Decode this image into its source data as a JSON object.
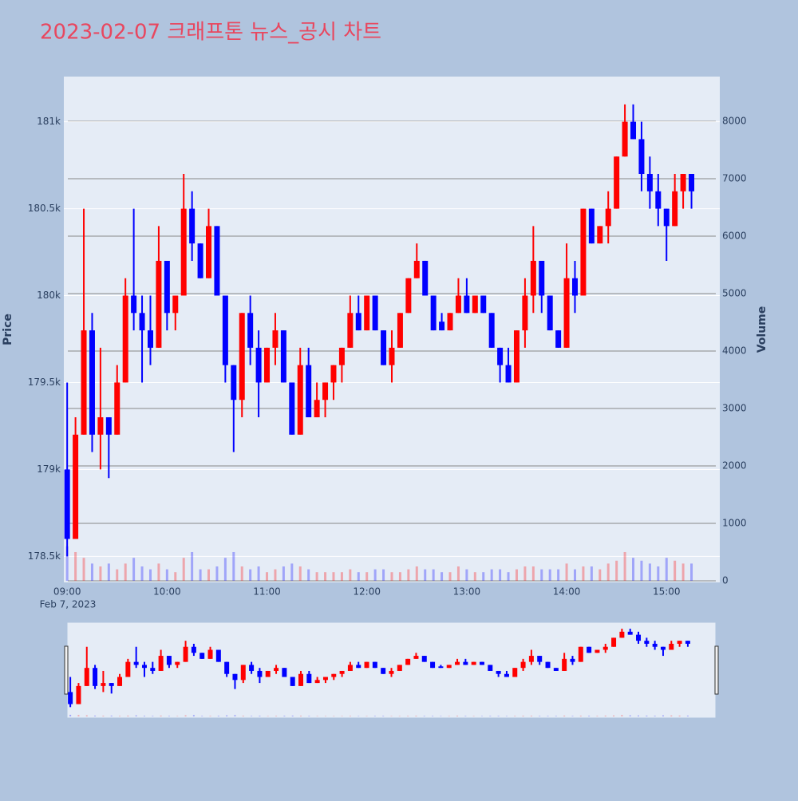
{
  "chart_data": {
    "type": "candlestick",
    "title": "2023-02-07 크래프톤 뉴스_공시 차트",
    "y_title": "Price",
    "y2_title": "Volume",
    "x_date_label": "Feb 7, 2023",
    "increasing_color": "#ff0000",
    "decreasing_color": "#0000ff",
    "grid": true,
    "x": [
      "09:00",
      "09:05",
      "09:10",
      "09:15",
      "09:20",
      "09:25",
      "09:30",
      "09:35",
      "09:40",
      "09:45",
      "09:50",
      "09:55",
      "10:00",
      "10:05",
      "10:10",
      "10:15",
      "10:20",
      "10:25",
      "10:30",
      "10:35",
      "10:40",
      "10:45",
      "10:50",
      "10:55",
      "11:00",
      "11:05",
      "11:10",
      "11:15",
      "11:20",
      "11:25",
      "11:30",
      "11:35",
      "11:40",
      "11:45",
      "11:50",
      "11:55",
      "12:00",
      "12:05",
      "12:10",
      "12:15",
      "12:20",
      "12:25",
      "12:30",
      "12:35",
      "12:40",
      "12:45",
      "12:50",
      "12:55",
      "13:00",
      "13:05",
      "13:10",
      "13:15",
      "13:20",
      "13:25",
      "13:30",
      "13:35",
      "13:40",
      "13:45",
      "13:50",
      "13:55",
      "14:00",
      "14:05",
      "14:10",
      "14:15",
      "14:20",
      "14:25",
      "14:30",
      "14:35",
      "14:40",
      "14:45",
      "14:50",
      "14:55",
      "15:00",
      "15:05",
      "15:10",
      "15:15"
    ],
    "open": [
      179000,
      178600,
      179200,
      179800,
      179200,
      179300,
      179200,
      179500,
      180000,
      179900,
      179800,
      179700,
      180200,
      179900,
      180000,
      180500,
      180300,
      180100,
      180400,
      180000,
      179600,
      179400,
      179900,
      179700,
      179500,
      179700,
      179800,
      179500,
      179200,
      179600,
      179300,
      179400,
      179500,
      179600,
      179700,
      179900,
      179800,
      180000,
      179800,
      179600,
      179700,
      179900,
      180100,
      180200,
      180000,
      179850,
      179800,
      179900,
      180000,
      179900,
      180000,
      179900,
      179700,
      179600,
      179500,
      179800,
      180000,
      180200,
      180000,
      179800,
      179700,
      180100,
      180000,
      180500,
      180300,
      180400,
      180500,
      180800,
      181000,
      180900,
      180700,
      180600,
      180500,
      180400,
      180600,
      180700
    ],
    "high": [
      179500,
      179300,
      180500,
      179900,
      179700,
      179300,
      179600,
      180100,
      180500,
      180000,
      180000,
      180400,
      180200,
      180000,
      180700,
      180600,
      180300,
      180500,
      180400,
      180000,
      179600,
      179900,
      180000,
      179800,
      179700,
      179900,
      179800,
      179500,
      179700,
      179700,
      179500,
      179500,
      179600,
      179700,
      180000,
      180000,
      180000,
      180000,
      179800,
      179800,
      179900,
      180100,
      180300,
      180200,
      180000,
      179900,
      179900,
      180100,
      180100,
      180000,
      180000,
      179900,
      179700,
      179700,
      179800,
      180100,
      180400,
      180200,
      180000,
      179800,
      180300,
      180200,
      180500,
      180500,
      180400,
      180600,
      180800,
      181100,
      181100,
      181000,
      180800,
      180700,
      180500,
      180700,
      180700,
      180700
    ],
    "low": [
      178500,
      178600,
      179200,
      179100,
      179000,
      178950,
      179200,
      179500,
      179800,
      179500,
      179600,
      179700,
      179800,
      179800,
      180000,
      180200,
      180100,
      180100,
      180000,
      179500,
      179100,
      179300,
      179600,
      179300,
      179500,
      179600,
      179500,
      179200,
      179200,
      179300,
      179300,
      179300,
      179400,
      179500,
      179700,
      179800,
      179800,
      179800,
      179600,
      179500,
      179700,
      179900,
      180100,
      180000,
      179800,
      179800,
      179800,
      179900,
      179900,
      179900,
      179900,
      179700,
      179500,
      179500,
      179500,
      179700,
      179900,
      179900,
      179800,
      179700,
      179700,
      179900,
      180000,
      180300,
      180300,
      180300,
      180500,
      180800,
      180900,
      180600,
      180500,
      180400,
      180200,
      180400,
      180500,
      180500
    ],
    "close": [
      178600,
      179200,
      179800,
      179200,
      179300,
      179200,
      179500,
      180000,
      179900,
      179800,
      179700,
      180200,
      179900,
      180000,
      180500,
      180300,
      180100,
      180400,
      180000,
      179600,
      179400,
      179900,
      179700,
      179500,
      179700,
      179800,
      179500,
      179200,
      179600,
      179300,
      179400,
      179500,
      179600,
      179700,
      179900,
      179800,
      180000,
      179800,
      179600,
      179700,
      179900,
      180100,
      180200,
      180000,
      179800,
      179800,
      179900,
      180000,
      179900,
      180000,
      179900,
      179700,
      179600,
      179500,
      179800,
      180000,
      180200,
      180000,
      179800,
      179700,
      180100,
      180000,
      180500,
      180300,
      180400,
      180500,
      180800,
      181000,
      180900,
      180700,
      180600,
      180500,
      180400,
      180600,
      180700,
      180600
    ],
    "volume": [
      600,
      500,
      400,
      300,
      250,
      300,
      200,
      300,
      400,
      250,
      200,
      300,
      200,
      150,
      400,
      500,
      200,
      200,
      250,
      400,
      500,
      250,
      200,
      250,
      150,
      200,
      250,
      300,
      250,
      200,
      150,
      150,
      150,
      150,
      200,
      150,
      150,
      200,
      200,
      150,
      150,
      200,
      250,
      200,
      200,
      150,
      150,
      250,
      200,
      150,
      150,
      200,
      200,
      150,
      200,
      250,
      250,
      200,
      200,
      200,
      300,
      200,
      250,
      250,
      200,
      300,
      350,
      500,
      400,
      350,
      300,
      250,
      400,
      350,
      300,
      300
    ],
    "xlim": [
      "08:58",
      "15:32"
    ],
    "xticks": [
      "09:00",
      "10:00",
      "11:00",
      "12:00",
      "13:00",
      "14:00",
      "15:00"
    ],
    "ylim": [
      178350,
      181260
    ],
    "yticks": [
      {
        "value": 178500,
        "label": "178.5k"
      },
      {
        "value": 179000,
        "label": "179k"
      },
      {
        "value": 179500,
        "label": "179.5k"
      },
      {
        "value": 180000,
        "label": "180k"
      },
      {
        "value": 180500,
        "label": "180.5k"
      },
      {
        "value": 181000,
        "label": "181k"
      }
    ],
    "y2lim": [
      -28,
      8778
    ],
    "y2ticks": [
      0,
      1000,
      2000,
      3000,
      4000,
      5000,
      6000,
      7000,
      8000
    ]
  }
}
